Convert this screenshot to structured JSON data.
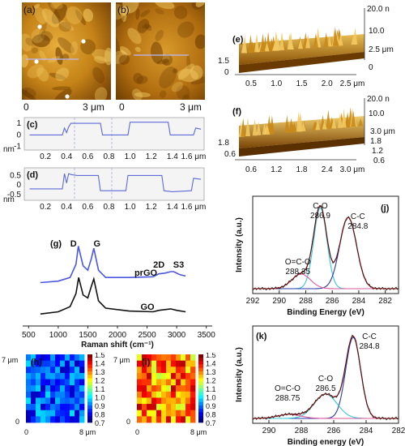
{
  "colors": {
    "afm_dark": "#6b3a00",
    "afm_mid": "#c98a1a",
    "afm_light": "#f2c860",
    "trace": "#5c6bd6",
    "xps_envelope": "#d62a2a",
    "xps_cc": "#2a3aa8",
    "xps_co": "#37c6d6",
    "xps_oco": "#d85aa0",
    "raman_prgo": "#4b57e0",
    "raman_go": "#111111"
  },
  "panels": {
    "a": {
      "tag": "(a)",
      "scale_zero": "0",
      "scale_len": "3 μm"
    },
    "b": {
      "tag": "(b)",
      "scale_zero": "0",
      "scale_len": "3 μm"
    },
    "c": {
      "tag": "(c)",
      "unit": "nm"
    },
    "d": {
      "tag": "(d)",
      "unit": "nm"
    },
    "e": {
      "tag": "(e)",
      "z_top": "20.0 n",
      "z_mid": "10.0",
      "z_low": "2.5 μm",
      "z_zero": "0",
      "left_ticks": [
        "1.5",
        "0"
      ],
      "x_ticks": [
        "0.5",
        "1.0",
        "1.5",
        "2.0",
        "2.5 μm"
      ]
    },
    "f": {
      "tag": "(f)",
      "z_top": "20.0 n",
      "z_mid": "10.0",
      "z_low": "3.0 μm",
      "left_ticks": [
        "1.8",
        "0.6"
      ],
      "right_ticks": [
        "1.8",
        "1.2",
        "0.6"
      ],
      "x_ticks": [
        "0.6",
        "1.2",
        "1.8",
        "2.4",
        "3.0 μm"
      ]
    },
    "g": {
      "tag": "(g)"
    },
    "h": {
      "tag": "(h)",
      "y_top": "7 μm",
      "y_zero": "0",
      "x_zero": "0",
      "x_end": "8 μm"
    },
    "i": {
      "tag": "(i)",
      "y_top": "7 μm",
      "y_zero": "0",
      "x_zero": "0",
      "x_end": "8 μm"
    },
    "j": {
      "tag": "(j)"
    },
    "k": {
      "tag": "(k)"
    }
  },
  "chart_data": [
    {
      "id": "c",
      "type": "line",
      "x": [
        0.05,
        0.36,
        0.38,
        0.4,
        0.42,
        0.44,
        0.5,
        0.6,
        0.72,
        0.74,
        0.8,
        0.98,
        1.0,
        1.2,
        1.36,
        1.38,
        1.6,
        1.62,
        1.67
      ],
      "y": [
        0.0,
        0.0,
        0.6,
        0.2,
        0.7,
        1.0,
        1.0,
        1.0,
        1.0,
        0.0,
        0.0,
        0.0,
        1.1,
        1.1,
        1.1,
        0.0,
        0.0,
        0.6,
        0.5
      ],
      "xticks": [
        "0.2",
        "0.4",
        "0.6",
        "0.8",
        "1.0",
        "1.2",
        "1.4",
        "1.6 μm"
      ],
      "yticks": [
        "1",
        "0",
        "-1"
      ],
      "xlim": [
        0.0,
        1.7
      ],
      "ylim": [
        -1.3,
        1.5
      ]
    },
    {
      "id": "d",
      "type": "line",
      "x": [
        0.05,
        0.36,
        0.38,
        0.4,
        0.42,
        0.44,
        0.5,
        0.6,
        0.7,
        0.72,
        0.8,
        0.96,
        0.98,
        1.2,
        1.3,
        1.32,
        1.4,
        1.58,
        1.6,
        1.67
      ],
      "y": [
        -0.2,
        -0.2,
        0.6,
        0.1,
        0.6,
        0.55,
        0.5,
        0.5,
        0.5,
        -0.3,
        -0.3,
        -0.3,
        0.5,
        0.5,
        0.5,
        -0.3,
        -0.35,
        -0.3,
        0.35,
        0.3
      ],
      "xticks": [
        "0.2",
        "0.4",
        "0.6",
        "0.8",
        "1.0",
        "1.2",
        "1.4",
        "1.6 μm"
      ],
      "yticks": [
        "0.5",
        "0",
        "-0.5"
      ],
      "xlim": [
        0.0,
        1.7
      ],
      "ylim": [
        -0.8,
        0.9
      ]
    },
    {
      "id": "g",
      "type": "line",
      "xlabel": "Raman shift (cm⁻¹)",
      "xticks": [
        "500",
        "1000",
        "1500",
        "2000",
        "2500",
        "3000",
        "3500"
      ],
      "xlim": [
        400,
        3600
      ],
      "series": [
        {
          "name": "prGO",
          "x": [
            700,
            1000,
            1200,
            1300,
            1340,
            1420,
            1500,
            1560,
            1600,
            1680,
            1800,
            2200,
            2600,
            2700,
            2800,
            2900,
            2950,
            3050,
            3150
          ],
          "y": [
            0.55,
            0.57,
            0.62,
            0.8,
            1.05,
            0.78,
            0.72,
            0.88,
            1.02,
            0.72,
            0.62,
            0.62,
            0.63,
            0.67,
            0.68,
            0.7,
            0.7,
            0.66,
            0.64
          ]
        },
        {
          "name": "GO",
          "x": [
            700,
            1000,
            1200,
            1300,
            1345,
            1420,
            1500,
            1560,
            1600,
            1680,
            1800,
            2200,
            2600,
            2700,
            2800,
            2900,
            3000,
            3150
          ],
          "y": [
            0.12,
            0.15,
            0.22,
            0.4,
            0.62,
            0.38,
            0.34,
            0.5,
            0.6,
            0.3,
            0.2,
            0.16,
            0.15,
            0.17,
            0.18,
            0.19,
            0.17,
            0.15
          ]
        }
      ],
      "peak_labels": [
        "D",
        "G",
        "2D",
        "S3"
      ]
    },
    {
      "id": "j",
      "type": "line",
      "ylabel": "Intensity (a.u.)",
      "xlabel": "Binding Energy (eV)",
      "xticks": [
        "292",
        "290",
        "288",
        "286",
        "284",
        "282"
      ],
      "xlim": [
        292,
        281
      ],
      "peaks": [
        {
          "label": "C-O",
          "value": "286.9",
          "center": 286.9,
          "height": 1.0,
          "width": 0.7
        },
        {
          "label": "C-C",
          "value": "284.8",
          "center": 284.8,
          "height": 0.88,
          "width": 0.9
        },
        {
          "label": "O=C-O",
          "value": "288.35",
          "center": 288.35,
          "height": 0.18,
          "width": 1.0
        }
      ]
    },
    {
      "id": "k",
      "type": "line",
      "ylabel": "Intensity (a.u.)",
      "xlabel": "Binding energy (eV)",
      "xticks": [
        "290",
        "288",
        "286",
        "284",
        "282"
      ],
      "xlim": [
        291,
        282
      ],
      "peaks": [
        {
          "label": "C-C",
          "value": "284.8",
          "center": 284.8,
          "height": 1.0,
          "width": 0.65
        },
        {
          "label": "C-O",
          "value": "286.5",
          "center": 286.5,
          "height": 0.3,
          "width": 1.0
        },
        {
          "label": "O=C-O",
          "value": "288.75",
          "center": 288.75,
          "height": 0.05,
          "width": 1.0
        }
      ]
    },
    {
      "id": "h",
      "type": "heatmap",
      "colorbar_ticks": [
        "1.5",
        "1.4",
        "1.3",
        "1.2",
        "1.1",
        "1.0",
        "0.9",
        "0.8",
        "0.7"
      ],
      "vmin": 0.7,
      "vmax": 1.5
    },
    {
      "id": "i",
      "type": "heatmap",
      "colorbar_ticks": [
        "1.5",
        "1.4",
        "1.3",
        "1.2",
        "1.1",
        "1.0",
        "0.9",
        "0.8",
        "0.7"
      ],
      "vmin": 0.7,
      "vmax": 1.5
    }
  ]
}
